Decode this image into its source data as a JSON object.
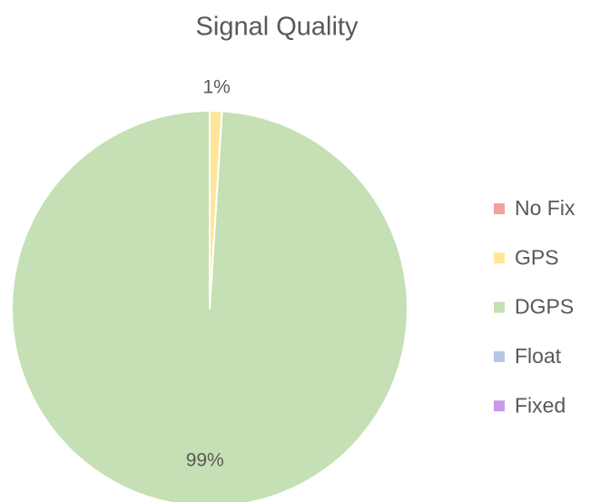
{
  "chart_data": {
    "type": "pie",
    "title": "Signal Quality",
    "categories": [
      "No Fix",
      "GPS",
      "DGPS",
      "Float",
      "Fixed"
    ],
    "values": [
      0,
      1,
      99,
      0,
      0
    ],
    "value_labels": [
      null,
      "1%",
      "99%",
      null,
      null
    ],
    "colors": [
      "#f4a09c",
      "#ffe699",
      "#c5e0b4",
      "#b4c7e7",
      "#c39be8"
    ],
    "legend": "right"
  }
}
